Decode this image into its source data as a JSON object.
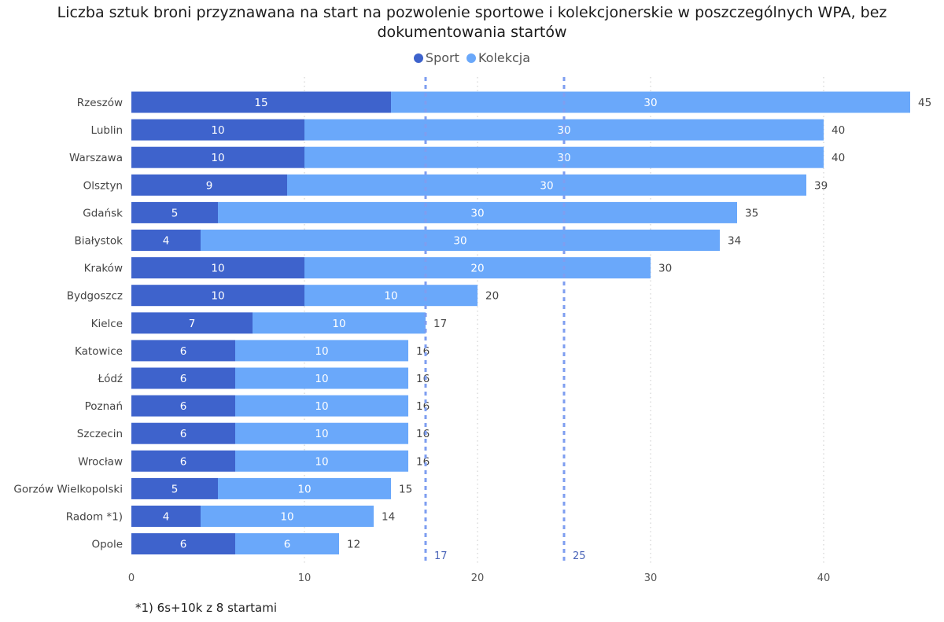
{
  "chart_data": {
    "type": "bar",
    "orientation": "horizontal",
    "stacked": true,
    "title": "Liczba sztuk broni przyznawana na start na pozwolenie sportowe i kolekcjonerskie w poszczególnych WPA, bez dokumentowania startów",
    "categories": [
      "Rzeszów",
      "Lublin",
      "Warszawa",
      "Olsztyn",
      "Gdańsk",
      "Białystok",
      "Kraków",
      "Bydgoszcz",
      "Kielce",
      "Katowice",
      "Łódź",
      "Poznań",
      "Szczecin",
      "Wrocław",
      "Gorzów Wielkopolski",
      "Radom *1)",
      "Opole"
    ],
    "series": [
      {
        "name": "Sport",
        "color": "#3e63cc",
        "values": [
          15,
          10,
          10,
          9,
          5,
          4,
          10,
          10,
          7,
          6,
          6,
          6,
          6,
          6,
          5,
          4,
          6
        ]
      },
      {
        "name": "Kolekcja",
        "color": "#6aa8fa",
        "values": [
          30,
          30,
          30,
          30,
          30,
          30,
          20,
          10,
          10,
          10,
          10,
          10,
          10,
          10,
          10,
          10,
          6
        ]
      }
    ],
    "totals": [
      45,
      40,
      40,
      39,
      35,
      34,
      30,
      20,
      17,
      16,
      16,
      16,
      16,
      16,
      15,
      14,
      12
    ],
    "xlim": [
      0,
      46
    ],
    "xticks": [
      0,
      10,
      20,
      30,
      40
    ],
    "reference_lines": [
      {
        "value": 17,
        "label": "17",
        "color": "#7e9ef0"
      },
      {
        "value": 25,
        "label": "25",
        "color": "#7e9ef0"
      }
    ],
    "grid": true,
    "legend_position": "top-center",
    "xlabel": "",
    "ylabel": ""
  },
  "footnote": "*1) 6s+10k z 8 startami"
}
